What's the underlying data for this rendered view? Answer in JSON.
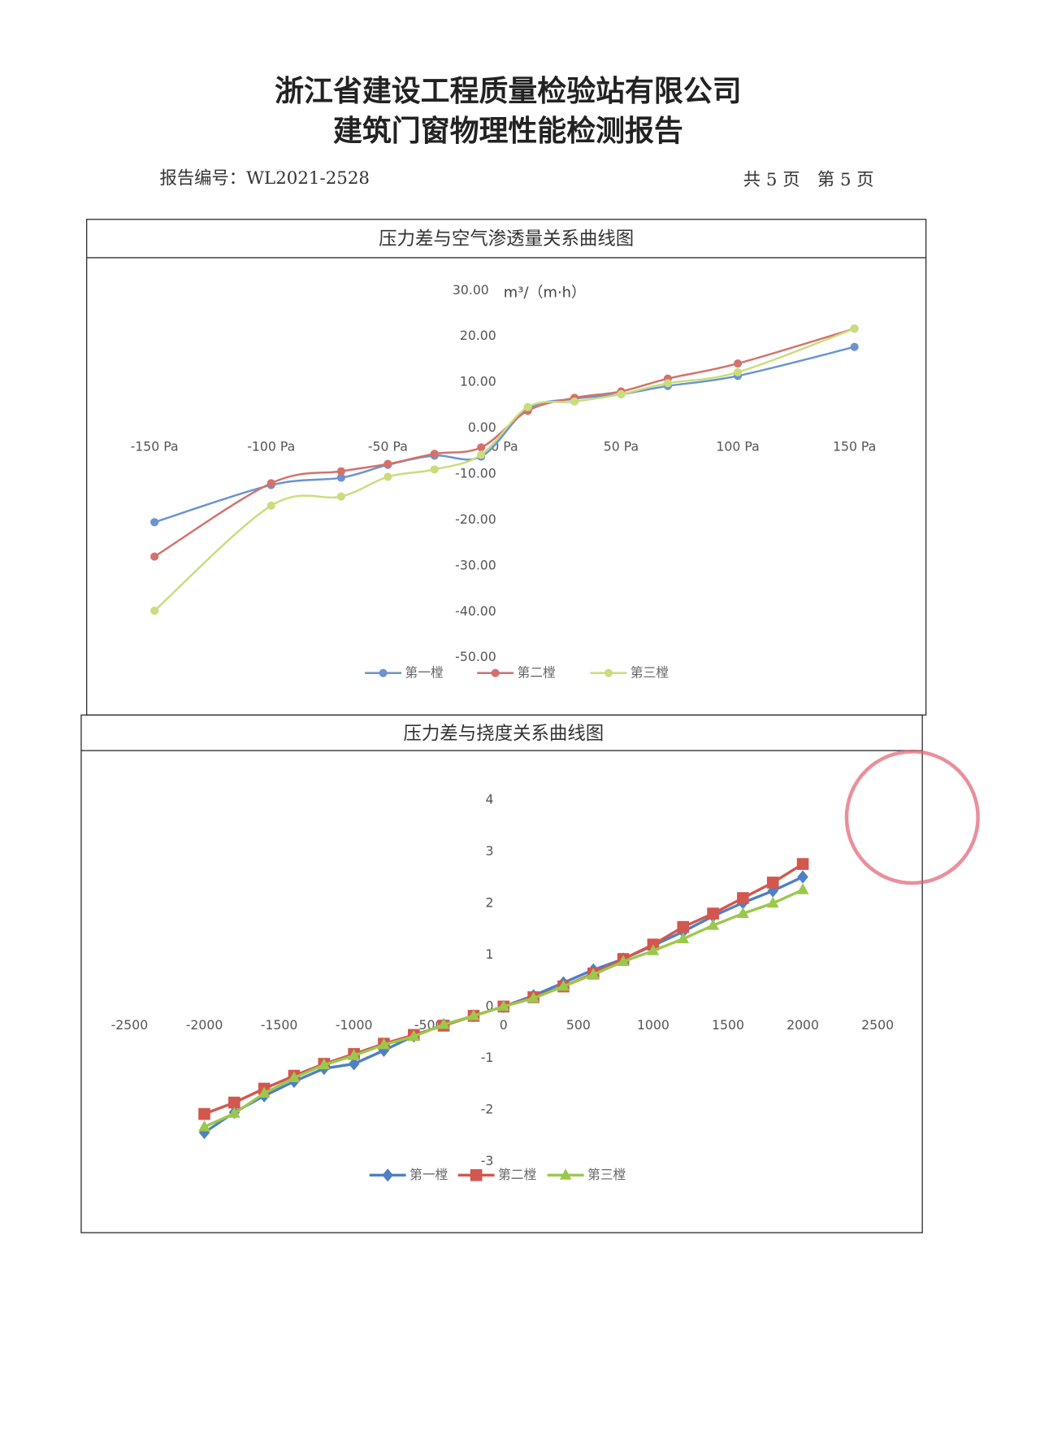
{
  "header": {
    "title": "浙江省建设工程质量检验站有限公司",
    "subtitle": "建筑门窗物理性能检测报告",
    "report_no": "报告编号：WL2021-2528",
    "page_info": "共 5 页　第 5 页"
  },
  "chart_data": [
    {
      "type": "line",
      "title": "压力差与空气渗透量关系曲线图",
      "y_label": "m³/（m·h）",
      "smooth": true,
      "legend": "bottom",
      "marker": "circle",
      "x": [
        -150,
        -100,
        -70,
        -50,
        -30,
        -10,
        10,
        30,
        50,
        70,
        100,
        150
      ],
      "xlim": [
        -165,
        165
      ],
      "xticks": [
        {
          "value": -150,
          "label": "-150 Pa"
        },
        {
          "value": -100,
          "label": "-100 Pa"
        },
        {
          "value": -50,
          "label": "-50 Pa"
        },
        {
          "value": 0,
          "label": "0 Pa"
        },
        {
          "value": 50,
          "label": "50 Pa"
        },
        {
          "value": 100,
          "label": "100 Pa"
        },
        {
          "value": 150,
          "label": "150 Pa"
        }
      ],
      "ylim": [
        -50,
        30
      ],
      "yticks": [
        {
          "value": 30,
          "label": "30.00"
        },
        {
          "value": 20,
          "label": "20.00"
        },
        {
          "value": 10,
          "label": "10.00"
        },
        {
          "value": 0,
          "label": "0.00"
        },
        {
          "value": -10,
          "label": "-10.00"
        },
        {
          "value": -20,
          "label": "-20.00"
        },
        {
          "value": -30,
          "label": "-30.00"
        },
        {
          "value": -40,
          "label": "-40.00"
        },
        {
          "value": -50,
          "label": "-50.00"
        }
      ],
      "series": [
        {
          "name": "第一樘",
          "color": "#6b93cf",
          "values": [
            -20.5,
            -12.4,
            -10.8,
            -8,
            -6,
            -6.2,
            4.2,
            6.4,
            7.4,
            9.2,
            11.4,
            17.7
          ]
        },
        {
          "name": "第二樘",
          "color": "#d4716b",
          "values": [
            -28,
            -12,
            -9.4,
            -7.8,
            -5.6,
            -4.2,
            3.8,
            6.6,
            8,
            10.8,
            14.1,
            21.7
          ]
        },
        {
          "name": "第三樘",
          "color": "#c9dd7c",
          "values": [
            -39.8,
            -16.9,
            -14.9,
            -10.6,
            -9,
            -5.8,
            4.6,
            5.8,
            7.4,
            9.8,
            12.2,
            21.7
          ]
        }
      ]
    },
    {
      "type": "line",
      "title": "压力差与挠度关系曲线图",
      "smooth": false,
      "legend": "bottom",
      "x": [
        -2000,
        -1800,
        -1600,
        -1400,
        -1200,
        -1000,
        -800,
        -600,
        -400,
        -200,
        0,
        200,
        400,
        600,
        800,
        1000,
        1200,
        1400,
        1600,
        1800,
        2000
      ],
      "xlim": [
        -2500,
        2500
      ],
      "xticks": [
        -2500,
        -2000,
        -1500,
        -1000,
        -500,
        0,
        500,
        1000,
        1500,
        2000,
        2500
      ],
      "ylim": [
        -3,
        4
      ],
      "yticks": [
        4,
        3,
        2,
        1,
        0,
        -1,
        -2,
        -3
      ],
      "series": [
        {
          "name": "第一樘",
          "color": "#4f7fc4",
          "marker": "diamond",
          "values": [
            -2.44,
            -2.05,
            -1.73,
            -1.45,
            -1.2,
            -1.11,
            -0.85,
            -0.57,
            -0.35,
            -0.18,
            0,
            0.21,
            0.46,
            0.71,
            0.92,
            1.18,
            1.45,
            1.75,
            2.01,
            2.24,
            2.51
          ]
        },
        {
          "name": "第二樘",
          "color": "#d2574f",
          "marker": "square",
          "values": [
            -2.08,
            -1.86,
            -1.59,
            -1.34,
            -1.11,
            -0.92,
            -0.72,
            -0.55,
            -0.37,
            -0.18,
            0,
            0.18,
            0.39,
            0.64,
            0.92,
            1.2,
            1.54,
            1.8,
            2.1,
            2.4,
            2.76
          ]
        },
        {
          "name": "第三樘",
          "color": "#9bc84c",
          "marker": "triangle",
          "values": [
            -2.33,
            -2.07,
            -1.68,
            -1.38,
            -1.13,
            -0.95,
            -0.74,
            -0.58,
            -0.35,
            -0.18,
            0,
            0.16,
            0.39,
            0.62,
            0.87,
            1.08,
            1.31,
            1.57,
            1.8,
            2,
            2.26
          ]
        }
      ]
    }
  ]
}
